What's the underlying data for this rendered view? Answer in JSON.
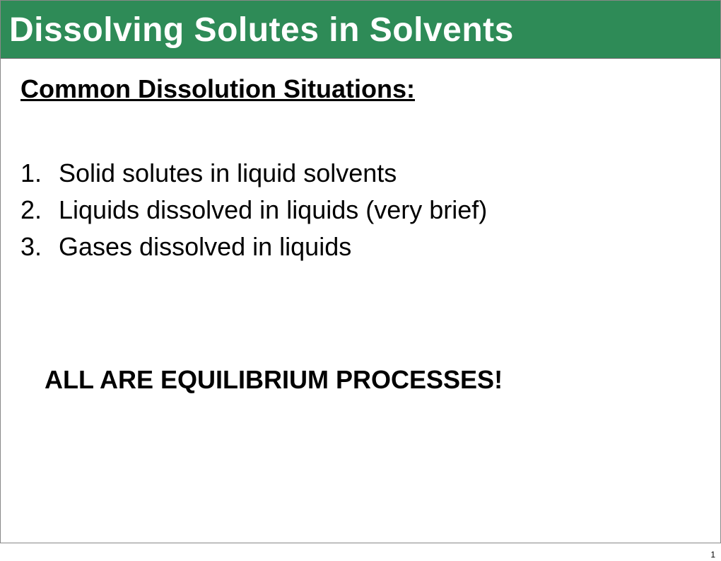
{
  "slide": {
    "title": "Dissolving Solutes in Solvents",
    "subheading": "Common Dissolution Situations:",
    "items": [
      {
        "num": "1.",
        "text": "Solid solutes in liquid solvents"
      },
      {
        "num": "2.",
        "text": "Liquids dissolved in liquids (very brief)"
      },
      {
        "num": "3.",
        "text": "Gases dissolved in liquids"
      }
    ],
    "emphasis": "ALL ARE EQUILIBRIUM PROCESSES!",
    "page_number": "1"
  },
  "colors": {
    "title_bg": "#2e8b57",
    "title_fg": "#ffffff",
    "body_bg": "#ffffff",
    "text": "#000000"
  },
  "typography": {
    "title_font": "Trebuchet MS",
    "title_size_pt": 36,
    "body_font": "Arial",
    "subheading_size_pt": 27,
    "body_size_pt": 27,
    "emphasis_size_pt": 27
  }
}
